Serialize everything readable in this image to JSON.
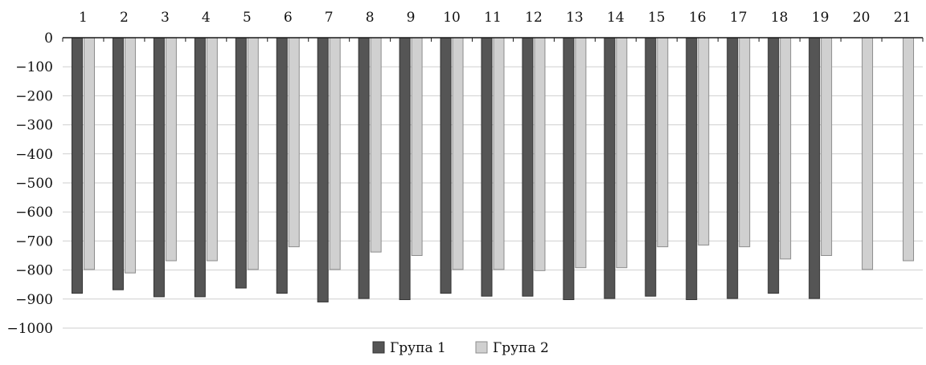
{
  "chart_data": {
    "type": "bar",
    "categories": [
      "1",
      "2",
      "3",
      "4",
      "5",
      "6",
      "7",
      "8",
      "9",
      "10",
      "11",
      "12",
      "13",
      "14",
      "15",
      "16",
      "17",
      "18",
      "19",
      "20",
      "21"
    ],
    "series": [
      {
        "name": "Група 1",
        "color": "#555555",
        "values": [
          -880,
          -868,
          -892,
          -892,
          -862,
          -880,
          -910,
          -898,
          -902,
          -880,
          -890,
          -890,
          -902,
          -898,
          -890,
          -902,
          -898,
          -880,
          -898,
          null,
          null
        ]
      },
      {
        "name": "Група 2",
        "color": "#d0d0d0",
        "values": [
          -798,
          -810,
          -768,
          -768,
          -798,
          -720,
          -798,
          -738,
          -750,
          -798,
          -798,
          -802,
          -792,
          -792,
          -720,
          -714,
          -720,
          -762,
          -750,
          -798,
          -768
        ]
      }
    ],
    "ylim": [
      -1000,
      0
    ],
    "yticks": [
      0,
      -100,
      -200,
      -300,
      -400,
      -500,
      -600,
      -700,
      -800,
      -900,
      -1000
    ],
    "ytick_labels": [
      "0",
      "−100",
      "−200",
      "−300",
      "−400",
      "−500",
      "−600",
      "−700",
      "−800",
      "−900",
      "−1000"
    ],
    "category_axis_position": "top",
    "grid": true,
    "legend": "bottom-center",
    "title": "",
    "xlabel": "",
    "ylabel": ""
  }
}
